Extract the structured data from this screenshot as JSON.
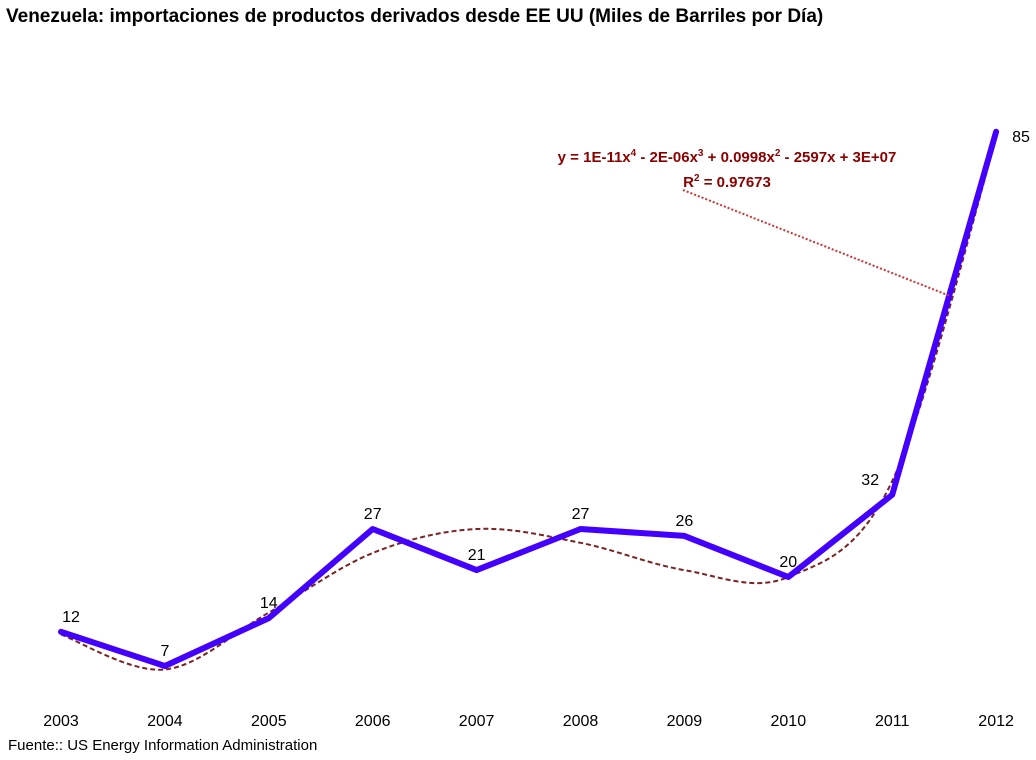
{
  "title": "Venezuela: importaciones de productos derivados desde EE UU (Miles de Barriles por Día)",
  "source": "Fuente:: US Energy Information Administration",
  "colors": {
    "series_line": "#4400ff",
    "trendline": "#7b2323",
    "equation_text": "#8b0000",
    "leader_line": "#cc3333"
  },
  "chart_data": {
    "type": "line",
    "title": "Venezuela: importaciones de productos derivados desde EE UU (Miles de Barriles por Día)",
    "xlabel": "",
    "ylabel": "",
    "categories": [
      "2003",
      "2004",
      "2005",
      "2006",
      "2007",
      "2008",
      "2009",
      "2010",
      "2011",
      "2012"
    ],
    "series": [
      {
        "values": [
          12,
          7,
          14,
          27,
          21,
          27,
          26,
          20,
          32,
          85
        ]
      }
    ],
    "ylim": [
      0,
      100
    ],
    "grid": false,
    "legend": "none",
    "data_labels": true,
    "trendline": {
      "type": "polynomial",
      "order": 4,
      "equation_line1_parts": [
        "y = 1E-11x",
        "4",
        " - 2E-06x",
        "3",
        " + 0.0998x",
        "2",
        " - 2597x + 3E+07"
      ],
      "r2_parts": [
        "R",
        "2",
        " = 0.97673"
      ],
      "fitted_values": [
        11.6,
        6.5,
        14.8,
        23.5,
        27.0,
        25.0,
        21.0,
        20.0,
        34.0,
        84.0
      ]
    }
  }
}
